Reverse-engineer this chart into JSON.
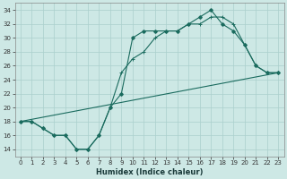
{
  "title": "",
  "xlabel": "Humidex (Indice chaleur)",
  "ylabel": "",
  "background_color": "#cde8e5",
  "grid_color": "#aacfcc",
  "line_color": "#1a6b5e",
  "xlim": [
    -0.5,
    23.5
  ],
  "ylim": [
    13.0,
    35.0
  ],
  "yticks": [
    14,
    16,
    18,
    20,
    22,
    24,
    26,
    28,
    30,
    32,
    34
  ],
  "xticks": [
    0,
    1,
    2,
    3,
    4,
    5,
    6,
    7,
    8,
    9,
    10,
    11,
    12,
    13,
    14,
    15,
    16,
    17,
    18,
    19,
    20,
    21,
    22,
    23
  ],
  "line1_x": [
    0,
    1,
    2,
    3,
    4,
    5,
    6,
    7,
    8,
    9,
    10,
    11,
    12,
    13,
    14,
    15,
    16,
    17,
    18,
    19,
    20,
    21,
    22,
    23
  ],
  "line1_y": [
    18,
    18,
    17,
    16,
    16,
    14,
    14,
    16,
    20,
    25,
    27,
    28,
    30,
    31,
    31,
    32,
    32,
    33,
    33,
    32,
    29,
    26,
    25,
    25
  ],
  "line2_x": [
    0,
    1,
    2,
    3,
    4,
    5,
    6,
    7,
    8,
    9,
    10,
    11,
    12,
    13,
    14,
    15,
    16,
    17,
    18,
    19,
    20,
    21,
    22,
    23
  ],
  "line2_y": [
    18,
    18,
    17,
    16,
    16,
    14,
    14,
    16,
    20,
    22,
    30,
    31,
    31,
    31,
    31,
    32,
    33,
    34,
    32,
    31,
    29,
    26,
    25,
    25
  ],
  "line3_x": [
    0,
    23
  ],
  "line3_y": [
    18,
    25
  ]
}
